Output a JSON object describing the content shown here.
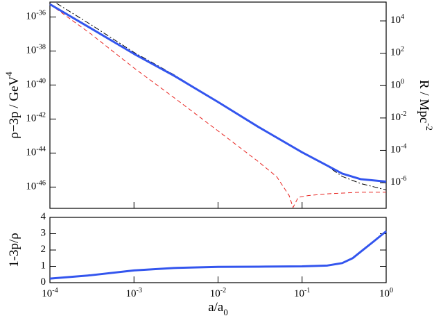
{
  "chart_data": [
    {
      "type": "line",
      "xscale": "log",
      "yscale": "log",
      "y2scale": "log",
      "xlim": [
        0.0001,
        1
      ],
      "ylim": [
        5.6e-48,
        7.5e-36
      ],
      "yticks": [
        {
          "value": 1e-36,
          "label": "10^-36"
        },
        {
          "value": 1e-38,
          "label": "10^-38"
        },
        {
          "value": 1e-40,
          "label": "10^-40"
        },
        {
          "value": 1e-42,
          "label": "10^-42"
        },
        {
          "value": 1e-44,
          "label": "10^-44"
        },
        {
          "value": 1e-46,
          "label": "10^-46"
        }
      ],
      "y2lim": [
        2.6e-08,
        145000
      ],
      "y2ticks": [
        {
          "value": 10000,
          "label": "10^4"
        },
        {
          "value": 100,
          "label": "10^2"
        },
        {
          "value": 1,
          "label": "10^0"
        },
        {
          "value": 0.01,
          "label": "10^-2"
        },
        {
          "value": 0.0001,
          "label": "10^-4"
        },
        {
          "value": 1e-06,
          "label": "10^-6"
        }
      ],
      "ylabel": "ρ−3p / GeV^4",
      "y2label": "R / Mpc^-2",
      "series": [
        {
          "color": "#000000",
          "dash": "dashdot",
          "width": 1,
          "x": [
            0.00012,
            0.0003,
            0.001,
            0.003,
            0.01,
            0.03,
            0.1,
            0.2,
            0.3,
            0.5,
            1
          ],
          "values": [
            6.3e-36,
            3.8e-37,
            8.3e-39,
            4e-40,
            1e-41,
            3.5e-43,
            1.1e-44,
            1.7e-45,
            4.2e-46,
            1.6e-46,
            6.8e-47
          ]
        },
        {
          "color": "#e8231f",
          "dash": "dashed",
          "width": 1,
          "x": [
            0.0001,
            0.0003,
            0.001,
            0.003,
            0.01,
            0.03,
            0.05,
            0.07,
            0.078,
            0.09,
            0.12,
            0.2,
            0.5,
            1
          ],
          "values": [
            5.6e-36,
            1.1e-37,
            1e-39,
            1.8e-41,
            2e-43,
            3.2e-45,
            4e-46,
            3.2e-47,
            6.3e-48,
            2.5e-47,
            3.2e-47,
            4e-47,
            5e-47,
            5e-47
          ]
        },
        {
          "color": "#3355ee",
          "dash": "solid",
          "width": 3,
          "x": [
            0.0001,
            0.0003,
            0.001,
            0.003,
            0.01,
            0.03,
            0.1,
            0.2,
            0.3,
            0.5,
            1
          ],
          "values": [
            5.6e-36,
            2.3e-37,
            6.8e-39,
            3.5e-40,
            1e-41,
            3.5e-43,
            1.1e-44,
            1.8e-45,
            6.2e-46,
            2.9e-46,
            2.1e-46
          ]
        }
      ]
    },
    {
      "type": "line",
      "xscale": "log",
      "xlim": [
        0.0001,
        1
      ],
      "xticks": [
        {
          "value": 0.0001,
          "label": "10^-4"
        },
        {
          "value": 0.001,
          "label": "10^-3"
        },
        {
          "value": 0.01,
          "label": "10^-2"
        },
        {
          "value": 0.1,
          "label": "10^-1"
        },
        {
          "value": 1,
          "label": "10^0"
        }
      ],
      "xlabel": "a/a_0",
      "ylim": [
        0,
        4
      ],
      "yticks": [
        0,
        1,
        2,
        3,
        4
      ],
      "ylabel": "1-3p/ρ",
      "series": [
        {
          "color": "#3355ee",
          "dash": "solid",
          "width": 3,
          "x": [
            0.0001,
            0.0003,
            0.001,
            0.003,
            0.01,
            0.03,
            0.1,
            0.2,
            0.3,
            0.4,
            0.5,
            0.7,
            1
          ],
          "values": [
            0.25,
            0.45,
            0.75,
            0.9,
            0.97,
            0.98,
            1.0,
            1.05,
            1.2,
            1.5,
            1.9,
            2.5,
            3.15
          ]
        }
      ]
    }
  ]
}
